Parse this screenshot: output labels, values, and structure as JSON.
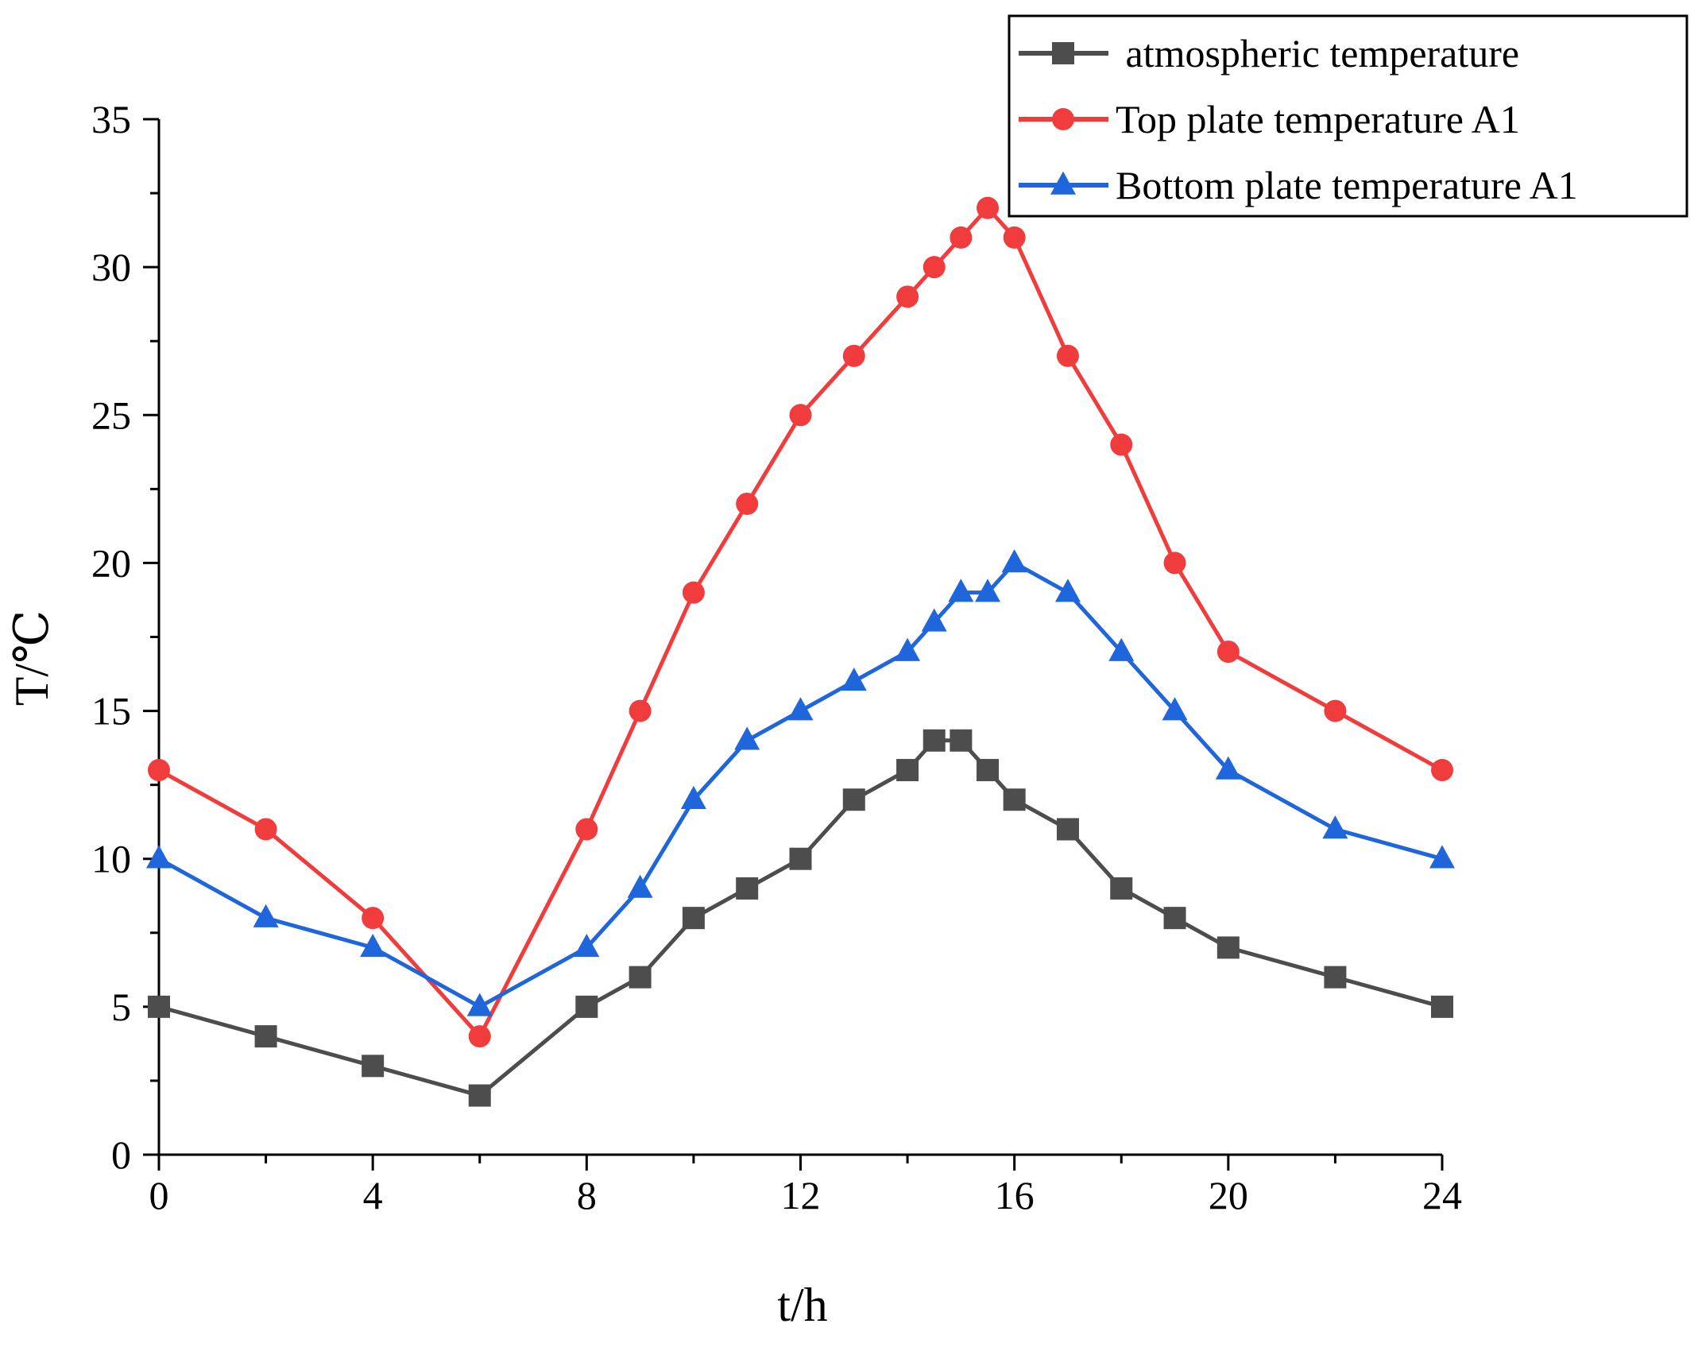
{
  "chart_data": {
    "type": "line",
    "title": "",
    "xlabel": "t/h",
    "ylabel": "T/℃",
    "xlim": [
      0,
      24
    ],
    "ylim": [
      0,
      35
    ],
    "x_ticks": [
      0,
      4,
      8,
      12,
      16,
      20,
      24
    ],
    "x_minor_ticks": [
      2,
      6,
      10,
      14,
      18,
      22
    ],
    "y_ticks": [
      0,
      5,
      10,
      15,
      20,
      25,
      30,
      35
    ],
    "y_minor_ticks": [
      2.5,
      7.5,
      12.5,
      17.5,
      22.5,
      27.5,
      32.5
    ],
    "grid": false,
    "legend_position": "top-right",
    "series": [
      {
        "name": " atmospheric temperature",
        "color": "#4d4d4d",
        "marker": "square",
        "x": [
          0,
          2,
          4,
          6,
          8,
          9,
          10,
          11,
          12,
          13,
          14,
          14.5,
          15,
          15.5,
          16,
          17,
          18,
          19,
          20,
          22,
          24
        ],
        "y": [
          5,
          4,
          3,
          2,
          5,
          6,
          8,
          9,
          10,
          12,
          13,
          14,
          14,
          13,
          12,
          11,
          9,
          8,
          7,
          6,
          5
        ]
      },
      {
        "name": "Top plate temperature A1",
        "color": "#f03c3c",
        "marker": "circle",
        "x": [
          0,
          2,
          4,
          6,
          8,
          9,
          10,
          11,
          12,
          13,
          14,
          14.5,
          15,
          15.5,
          16,
          17,
          18,
          19,
          20,
          22,
          24
        ],
        "y": [
          13,
          11,
          8,
          4,
          11,
          15,
          19,
          22,
          25,
          27,
          29,
          30,
          31,
          32,
          31,
          27,
          24,
          20,
          17,
          15,
          13
        ]
      },
      {
        "name": "Bottom plate temperature A1",
        "color": "#1f66dc",
        "marker": "triangle",
        "x": [
          0,
          2,
          4,
          6,
          8,
          9,
          10,
          11,
          12,
          13,
          14,
          14.5,
          15,
          15.5,
          16,
          17,
          18,
          19,
          20,
          22,
          24
        ],
        "y": [
          10,
          8,
          7,
          5,
          7,
          9,
          12,
          14,
          15,
          16,
          17,
          18,
          19,
          19,
          20,
          19,
          17,
          15,
          13,
          11,
          10
        ]
      }
    ]
  }
}
